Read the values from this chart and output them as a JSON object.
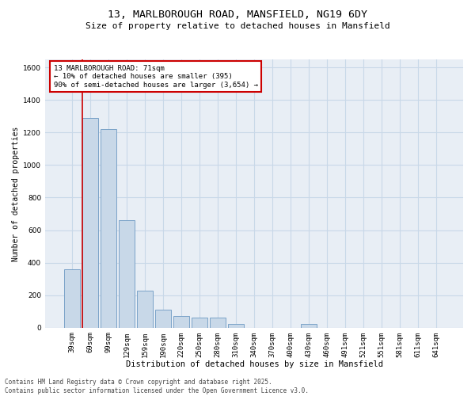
{
  "title": "13, MARLBOROUGH ROAD, MANSFIELD, NG19 6DY",
  "subtitle": "Size of property relative to detached houses in Mansfield",
  "xlabel": "Distribution of detached houses by size in Mansfield",
  "ylabel": "Number of detached properties",
  "categories": [
    "39sqm",
    "69sqm",
    "99sqm",
    "129sqm",
    "159sqm",
    "190sqm",
    "220sqm",
    "250sqm",
    "280sqm",
    "310sqm",
    "340sqm",
    "370sqm",
    "400sqm",
    "430sqm",
    "460sqm",
    "491sqm",
    "521sqm",
    "551sqm",
    "581sqm",
    "611sqm",
    "641sqm"
  ],
  "values": [
    360,
    1290,
    1220,
    660,
    230,
    110,
    70,
    60,
    60,
    25,
    0,
    0,
    0,
    25,
    0,
    0,
    0,
    0,
    0,
    0,
    0
  ],
  "bar_color": "#c8d8e8",
  "bar_edge_color": "#7ba3c8",
  "red_line_x": 1,
  "annotation_box_text": "13 MARLBOROUGH ROAD: 71sqm\n← 10% of detached houses are smaller (395)\n90% of semi-detached houses are larger (3,654) →",
  "annotation_box_color": "#ffffff",
  "annotation_box_edge_color": "#cc0000",
  "ylim": [
    0,
    1650
  ],
  "yticks": [
    0,
    200,
    400,
    600,
    800,
    1000,
    1200,
    1400,
    1600
  ],
  "grid_color": "#c8d8e8",
  "bg_color": "#e8eef5",
  "footnote": "Contains HM Land Registry data © Crown copyright and database right 2025.\nContains public sector information licensed under the Open Government Licence v3.0.",
  "title_fontsize": 9.5,
  "subtitle_fontsize": 8,
  "xlabel_fontsize": 7.5,
  "ylabel_fontsize": 7,
  "tick_fontsize": 6.5,
  "annotation_fontsize": 6.5,
  "footnote_fontsize": 5.5
}
